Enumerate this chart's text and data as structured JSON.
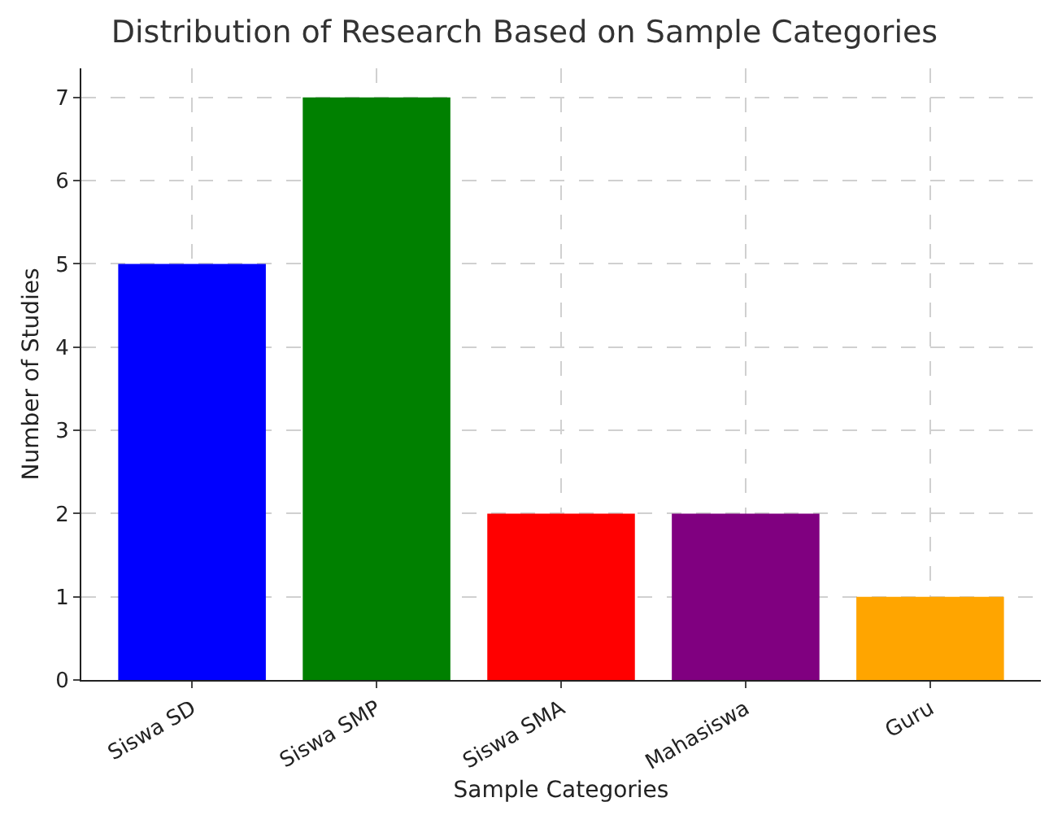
{
  "chart_data": {
    "type": "bar",
    "title": "Distribution of Research Based on Sample Categories",
    "xlabel": "Sample Categories",
    "ylabel": "Number of Studies",
    "categories": [
      "Siswa SD",
      "Siswa SMP",
      "Siswa SMA",
      "Mahasiswa",
      "Guru"
    ],
    "values": [
      5,
      7,
      2,
      2,
      1
    ],
    "colors": [
      "#0000ff",
      "#008000",
      "#ff0000",
      "#800080",
      "#ffa500"
    ],
    "ylim": [
      0,
      7.35
    ],
    "yticks": [
      0,
      1,
      2,
      3,
      4,
      5,
      6,
      7
    ],
    "grid": true
  }
}
